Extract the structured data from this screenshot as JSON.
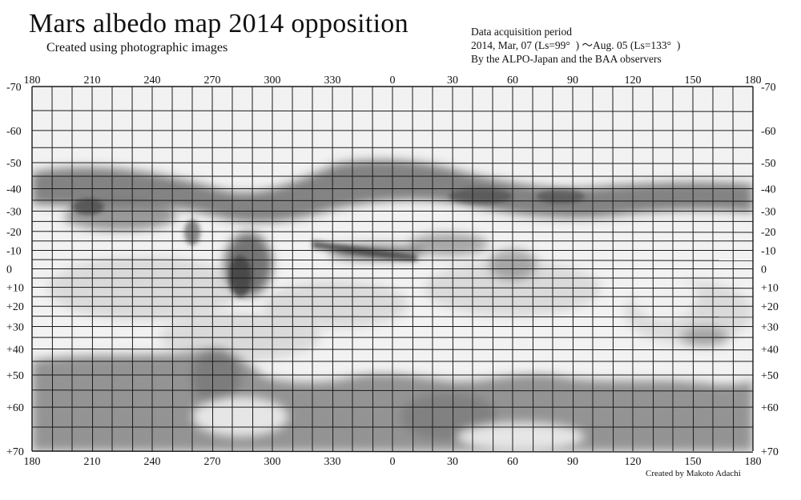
{
  "header": {
    "title": "Mars albedo map 2014 opposition",
    "subtitle": "Created using photographic images"
  },
  "info": {
    "line1": "Data acquisition period",
    "line2": "2014, Mar, 07 (Ls=99°  ) 〜Aug. 05 (Ls=133°  )",
    "line3": "By the ALPO-Japan and the BAA observers"
  },
  "credit": "Created by Makoto Adachi",
  "map": {
    "longitude_labels": [
      "180",
      "210",
      "240",
      "270",
      "300",
      "330",
      "0",
      "30",
      "60",
      "90",
      "120",
      "150",
      "180"
    ],
    "latitude_labels": [
      "-70",
      "-60",
      "-50",
      "-40",
      "-30",
      "-20",
      "-10",
      "0",
      "+10",
      "+20",
      "+30",
      "+40",
      "+50",
      "+60",
      "+70"
    ],
    "colors": {
      "background": "#f4f4f4",
      "dark_albedo": "#3a3a3a",
      "grid": "#1a1a1a"
    }
  }
}
